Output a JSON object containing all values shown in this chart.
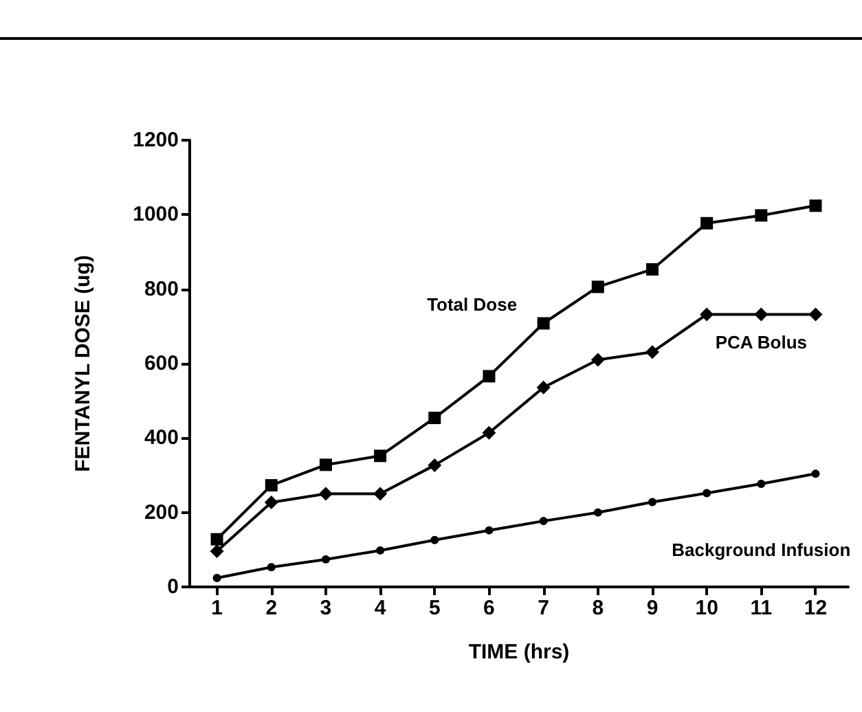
{
  "chart_data": {
    "type": "line",
    "xlabel": "TIME (hrs)",
    "ylabel": "FENTANYL DOSE (ug)",
    "x": [
      1,
      2,
      3,
      4,
      5,
      6,
      7,
      8,
      9,
      10,
      11,
      12
    ],
    "xlim": [
      0.5,
      12.6
    ],
    "xticks": [
      1,
      2,
      3,
      4,
      5,
      6,
      7,
      8,
      9,
      10,
      11,
      12
    ],
    "ylim": [
      0,
      1200
    ],
    "yticks": [
      0,
      200,
      400,
      600,
      800,
      1000,
      1200
    ],
    "grid": false,
    "legend": false,
    "line_style": "solid",
    "series": [
      {
        "name": "Total Dose",
        "color": "#000000",
        "marker": "square",
        "values": [
          128,
          273,
          328,
          352,
          454,
          566,
          708,
          806,
          853,
          977,
          998,
          1024
        ]
      },
      {
        "name": "PCA Bolus",
        "color": "#000000",
        "marker": "diamond",
        "values": [
          96,
          227,
          250,
          250,
          327,
          414,
          536,
          610,
          631,
          732,
          732,
          732
        ]
      },
      {
        "name": "Background Infusion",
        "color": "#000000",
        "marker": "circle",
        "values": [
          24,
          53,
          74,
          98,
          126,
          152,
          177,
          200,
          228,
          252,
          277,
          304
        ]
      }
    ]
  }
}
